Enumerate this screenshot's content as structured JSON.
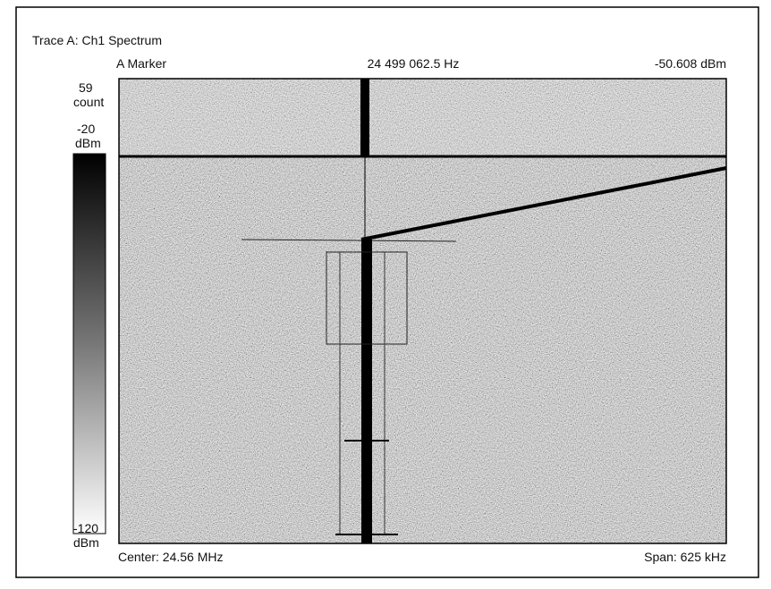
{
  "header": {
    "title": "Trace A: Ch1 Spectrum",
    "marker_label": "A Marker",
    "marker_frequency": "24 499 062.5 Hz",
    "marker_amplitude": "-50.608 dBm"
  },
  "scale": {
    "count_value": "59",
    "count_unit": "count",
    "top_value": "-20",
    "top_unit": "dBm",
    "bottom_value": "-120",
    "bottom_unit": "dBm"
  },
  "footer": {
    "center": "Center: 24.56 MHz",
    "span": "Span: 625 kHz"
  }
}
